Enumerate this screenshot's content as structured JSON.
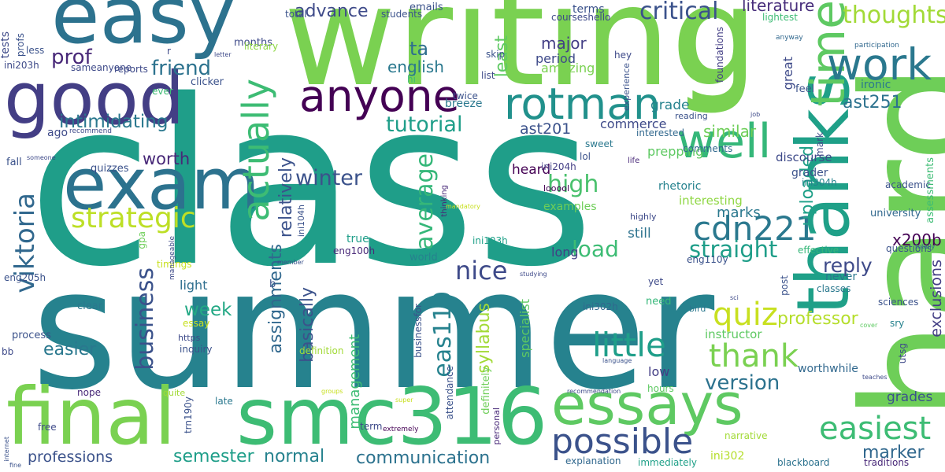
{
  "words": [
    {
      "text": "class",
      "color": "#1f9e89"
    },
    {
      "text": "summer",
      "color": "#26828e"
    },
    {
      "text": "writing",
      "color": "#7ad151"
    },
    {
      "text": "hard",
      "color": "#6ece58"
    },
    {
      "text": "thanks",
      "color": "#1fa088"
    },
    {
      "text": "good",
      "color": "#433e85"
    },
    {
      "text": "easy",
      "color": "#2c728e"
    },
    {
      "text": "exam",
      "color": "#2c728e"
    },
    {
      "text": "final",
      "color": "#7ad151"
    },
    {
      "text": "smc316",
      "color": "#3dbc74"
    },
    {
      "text": "essays",
      "color": "#5ec962"
    },
    {
      "text": "g",
      "color": "#7ad151"
    },
    {
      "text": "time",
      "color": "#5ec962"
    },
    {
      "text": "anyone",
      "color": "#440154"
    },
    {
      "text": "rotman",
      "color": "#21918c"
    },
    {
      "text": "work",
      "color": "#2a788e"
    },
    {
      "text": "well",
      "color": "#35b779"
    },
    {
      "text": "actually",
      "color": "#3dbc74"
    },
    {
      "text": "viktoria",
      "color": "#31688e"
    },
    {
      "text": "strategic",
      "color": "#bddf26"
    },
    {
      "text": "possible",
      "color": "#3b528b"
    },
    {
      "text": "easiest",
      "color": "#3dbc74"
    },
    {
      "text": "cdn221",
      "color": "#2a788e"
    },
    {
      "text": "little",
      "color": "#1f9e89"
    },
    {
      "text": "thank",
      "color": "#7ad151"
    },
    {
      "text": "quiz",
      "color": "#c8e020"
    },
    {
      "text": "nice",
      "color": "#3e4a89"
    },
    {
      "text": "business",
      "color": "#3b528b"
    },
    {
      "text": "thoughts",
      "color": "#a2da37"
    },
    {
      "text": "critical",
      "color": "#3b528b"
    },
    {
      "text": "prof",
      "color": "#482878"
    },
    {
      "text": "average",
      "color": "#35b779"
    },
    {
      "text": "tutorial",
      "color": "#1f9e89"
    },
    {
      "text": "winter",
      "color": "#3b528b"
    },
    {
      "text": "friend",
      "color": "#2c728e"
    },
    {
      "text": "intimidating",
      "color": "#2a788e"
    },
    {
      "text": "ast251",
      "color": "#2c728e"
    },
    {
      "text": "advance",
      "color": "#3e4a89"
    },
    {
      "text": "literature",
      "color": "#472d7b"
    },
    {
      "text": "straight",
      "color": "#1f9e89"
    },
    {
      "text": "marker",
      "color": "#31688e"
    },
    {
      "text": "semester",
      "color": "#1f9e89"
    },
    {
      "text": "normal",
      "color": "#26828e"
    },
    {
      "text": "communication",
      "color": "#2c728e"
    },
    {
      "text": "professions",
      "color": "#3b528b"
    },
    {
      "text": "version",
      "color": "#2c728e"
    },
    {
      "text": "professor",
      "color": "#b5de2b"
    },
    {
      "text": "reply",
      "color": "#3e4a89"
    },
    {
      "text": "uploaded",
      "color": "#1fa088"
    },
    {
      "text": "high",
      "color": "#4ac16d"
    },
    {
      "text": "load",
      "color": "#3dbc74"
    },
    {
      "text": "ta",
      "color": "#2e6e8e"
    },
    {
      "text": "least",
      "color": "#5ec962"
    },
    {
      "text": "english",
      "color": "#2a788e"
    },
    {
      "text": "major",
      "color": "#433e85"
    },
    {
      "text": "worth",
      "color": "#482878"
    },
    {
      "text": "week",
      "color": "#22a884"
    },
    {
      "text": "easier",
      "color": "#2a788e"
    },
    {
      "text": "assignments",
      "color": "#31688e"
    },
    {
      "text": "basically",
      "color": "#3b528b"
    },
    {
      "text": "relatively",
      "color": "#3b528b"
    },
    {
      "text": "eas110",
      "color": "#26828e"
    },
    {
      "text": "syllabus",
      "color": "#a2da37"
    },
    {
      "text": "management",
      "color": "#3dbc74"
    },
    {
      "text": "x200b",
      "color": "#440154"
    },
    {
      "text": "grades",
      "color": "#3b528b"
    },
    {
      "text": "exclusions",
      "color": "#433e85"
    },
    {
      "text": "marks",
      "color": "#2a788e"
    },
    {
      "text": "similar",
      "color": "#6ece58"
    },
    {
      "text": "commerce",
      "color": "#3e4a89"
    },
    {
      "text": "grade",
      "color": "#26828e"
    },
    {
      "text": "ast201",
      "color": "#3b528b"
    },
    {
      "text": "amazing",
      "color": "#7ad151"
    },
    {
      "text": "period",
      "color": "#3e4a89"
    },
    {
      "text": "light",
      "color": "#2e6e8e"
    },
    {
      "text": "still",
      "color": "#2c728e"
    },
    {
      "text": "long",
      "color": "#433e85"
    },
    {
      "text": "low",
      "color": "#433e85"
    },
    {
      "text": "hours",
      "color": "#5ec962"
    },
    {
      "text": "instructor",
      "color": "#5ec962"
    },
    {
      "text": "specialist",
      "color": "#5ec962"
    },
    {
      "text": "examples",
      "color": "#6ece58"
    },
    {
      "text": "heard",
      "color": "#440154"
    },
    {
      "text": "prepping",
      "color": "#5ec962"
    },
    {
      "text": "interesting",
      "color": "#8fd744"
    },
    {
      "text": "rhetoric",
      "color": "#26828e"
    },
    {
      "text": "grader",
      "color": "#3b528b"
    },
    {
      "text": "discourse",
      "color": "#3e4a89"
    },
    {
      "text": "university",
      "color": "#31688e"
    },
    {
      "text": "assessments",
      "color": "#3dbc74"
    },
    {
      "text": "ironic",
      "color": "#2a788e"
    },
    {
      "text": "feel",
      "color": "#3b528b"
    },
    {
      "text": "great",
      "color": "#3e4a89"
    },
    {
      "text": "foundations",
      "color": "#433e85"
    },
    {
      "text": "academic",
      "color": "#3b528b"
    },
    {
      "text": "mark",
      "color": "#3e4a89"
    },
    {
      "text": "questions",
      "color": "#3b528b"
    },
    {
      "text": "sciences",
      "color": "#3b528b"
    },
    {
      "text": "sry",
      "color": "#26828e"
    },
    {
      "text": "utsg",
      "color": "#3e4a89"
    },
    {
      "text": "traditions",
      "color": "#482878"
    },
    {
      "text": "blackboard",
      "color": "#2c728e"
    },
    {
      "text": "worthwhile",
      "color": "#31688e"
    },
    {
      "text": "narrative",
      "color": "#a2da37"
    },
    {
      "text": "immediately",
      "color": "#1fa088"
    },
    {
      "text": "explanation",
      "color": "#31688e"
    },
    {
      "text": "classes",
      "color": "#2a788e"
    },
    {
      "text": "never",
      "color": "#2a788e"
    },
    {
      "text": "effective",
      "color": "#35b779"
    },
    {
      "text": "ini302",
      "color": "#b5de2b"
    },
    {
      "text": "ini302h",
      "color": "#31688e"
    },
    {
      "text": "ini304h",
      "color": "#26828e"
    },
    {
      "text": "ini104h",
      "color": "#3b528b"
    },
    {
      "text": "ini103h",
      "color": "#1fa088"
    },
    {
      "text": "ini204h",
      "color": "#433e85"
    },
    {
      "text": "ini203h",
      "color": "#3e4a89"
    },
    {
      "text": "eng100h",
      "color": "#482878"
    },
    {
      "text": "eng110y",
      "color": "#3b528b"
    },
    {
      "text": "eng205h",
      "color": "#3b528b"
    },
    {
      "text": "trn190y",
      "color": "#3b528b"
    },
    {
      "text": "need",
      "color": "#35b779"
    },
    {
      "text": "yet",
      "color": "#3e4a89"
    },
    {
      "text": "bird",
      "color": "#2a788e"
    },
    {
      "text": "post",
      "color": "#3b528b"
    },
    {
      "text": "true",
      "color": "#1f9e89"
    },
    {
      "text": "world",
      "color": "#26828e"
    },
    {
      "text": "definition",
      "color": "#a2da37"
    },
    {
      "text": "quizzes",
      "color": "#3b528b"
    },
    {
      "text": "ago",
      "color": "#3e4a89"
    },
    {
      "text": "fall",
      "color": "#3b528b"
    },
    {
      "text": "clear",
      "color": "#2a788e"
    },
    {
      "text": "process",
      "color": "#3b528b"
    },
    {
      "text": "essay",
      "color": "#c8e020"
    },
    {
      "text": "https",
      "color": "#3e4a89"
    },
    {
      "text": "inquiry",
      "color": "#3b528b"
    },
    {
      "text": "quite",
      "color": "#a2da37"
    },
    {
      "text": "late",
      "color": "#2a788e"
    },
    {
      "text": "nope",
      "color": "#482878"
    },
    {
      "text": "free",
      "color": "#3e4a89"
    },
    {
      "text": "term",
      "color": "#3e4a89"
    },
    {
      "text": "extremely",
      "color": "#440154"
    },
    {
      "text": "attendance",
      "color": "#3b528b"
    },
    {
      "text": "definitely",
      "color": "#6ece58"
    },
    {
      "text": "personal",
      "color": "#482878"
    },
    {
      "text": "businessfor",
      "color": "#3b528b"
    },
    {
      "text": "breeze",
      "color": "#2a788e"
    },
    {
      "text": "clicker",
      "color": "#3b528b"
    },
    {
      "text": "total",
      "color": "#3b528b"
    },
    {
      "text": "months",
      "color": "#3e4a89"
    },
    {
      "text": "students",
      "color": "#3b528b"
    },
    {
      "text": "emails",
      "color": "#3b528b"
    },
    {
      "text": "terms",
      "color": "#3b528b"
    },
    {
      "text": "courseshello",
      "color": "#3e4a89"
    },
    {
      "text": "lightest",
      "color": "#3dbc74"
    },
    {
      "text": "literary",
      "color": "#8fd744"
    },
    {
      "text": "reports",
      "color": "#3e4a89"
    },
    {
      "text": "sameanyone",
      "color": "#3e4a89"
    },
    {
      "text": "skip",
      "color": "#3b528b"
    },
    {
      "text": "list",
      "color": "#3e4a89"
    },
    {
      "text": "twice",
      "color": "#3b528b"
    },
    {
      "text": "hi",
      "color": "#3dbc74"
    },
    {
      "text": "hey",
      "color": "#3e4a89"
    },
    {
      "text": "experience",
      "color": "#3b528b"
    },
    {
      "text": "reading",
      "color": "#3b528b"
    },
    {
      "text": "comments",
      "color": "#31688e"
    },
    {
      "text": "interested",
      "color": "#31688e"
    },
    {
      "text": "sweet",
      "color": "#2a788e"
    },
    {
      "text": "lol",
      "color": "#3b528b"
    },
    {
      "text": "looool",
      "color": "#440154"
    },
    {
      "text": "life",
      "color": "#482878"
    },
    {
      "text": "highly",
      "color": "#3e4a89"
    },
    {
      "text": "thinking",
      "color": "#482878"
    },
    {
      "text": "job",
      "color": "#3e4a89"
    },
    {
      "text": "anyway",
      "color": "#31688e"
    },
    {
      "text": "participation",
      "color": "#31688e"
    },
    {
      "text": "totally",
      "color": "#31688e"
    },
    {
      "text": "less",
      "color": "#3b528b"
    },
    {
      "text": "tests",
      "color": "#3e4a89"
    },
    {
      "text": "profs",
      "color": "#3b528b"
    },
    {
      "text": "r",
      "color": "#3e4a89"
    },
    {
      "text": "letter",
      "color": "#3e4a89"
    },
    {
      "text": "ever",
      "color": "#3dbc74"
    },
    {
      "text": "recommend",
      "color": "#3e4a89"
    },
    {
      "text": "someone",
      "color": "#3e4a89"
    },
    {
      "text": "timings",
      "color": "#c8e020"
    },
    {
      "text": "gpa",
      "color": "#6ece58"
    },
    {
      "text": "manageable",
      "color": "#3e4a89"
    },
    {
      "text": "member",
      "color": "#3b528b"
    },
    {
      "text": "b",
      "color": "#3b528b"
    },
    {
      "text": "mandatory",
      "color": "#c8e020"
    },
    {
      "text": "studying",
      "color": "#3e4a89"
    },
    {
      "text": "sci",
      "color": "#3e4a89"
    },
    {
      "text": "language",
      "color": "#3b528b"
    },
    {
      "text": "cover",
      "color": "#5ec962"
    },
    {
      "text": "teaches",
      "color": "#3e4a89"
    },
    {
      "text": "recommendation",
      "color": "#3e4a89"
    },
    {
      "text": "groups",
      "color": "#c8e020"
    },
    {
      "text": "super",
      "color": "#c8e020"
    },
    {
      "text": "bb",
      "color": "#3e4a89"
    },
    {
      "text": "internet",
      "color": "#3b528b"
    },
    {
      "text": "fine",
      "color": "#3b528b"
    }
  ]
}
